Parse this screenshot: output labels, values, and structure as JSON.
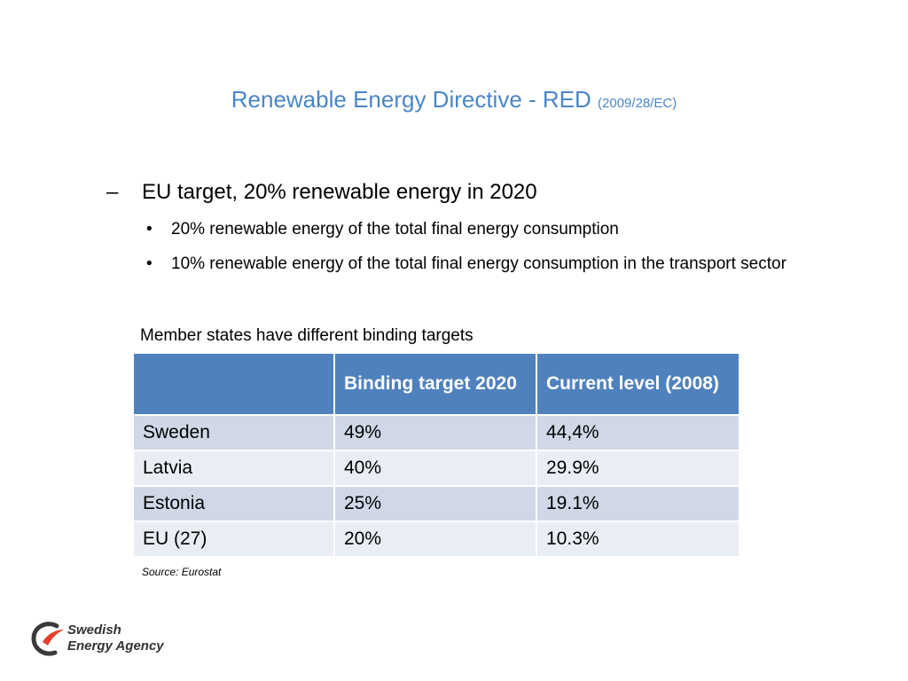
{
  "slide": {
    "title_main": "Renewable Energy Directive - RED",
    "title_sub": "(2009/28/EC)",
    "bullet_marker_l1": "–",
    "bullet_marker_l2": "•",
    "main_point": "EU target, 20% renewable energy in 2020",
    "sub_points": [
      "20% renewable energy of the total final energy consumption",
      "10% renewable energy of the total final energy consumption in the transport sector"
    ],
    "table_caption": "Member states have different binding targets",
    "table": {
      "headers": [
        "",
        "Binding target 2020",
        "Current level (2008)"
      ],
      "rows": [
        [
          "Sweden",
          "49%",
          "44,4%"
        ],
        [
          "Latvia",
          "40%",
          "29.9%"
        ],
        [
          "Estonia",
          "25%",
          "19.1%"
        ],
        [
          "EU (27)",
          "20%",
          "10.3%"
        ]
      ]
    },
    "source": "Source: Eurostat"
  },
  "logo": {
    "line1": "Swedish",
    "line2": "Energy Agency"
  },
  "colors": {
    "title": "#4a86c8",
    "table_header": "#4f81bd",
    "row_odd": "#d0d8e8",
    "row_even": "#e9edf4",
    "logo_red": "#e4402b",
    "logo_dark": "#3a3a3a"
  }
}
